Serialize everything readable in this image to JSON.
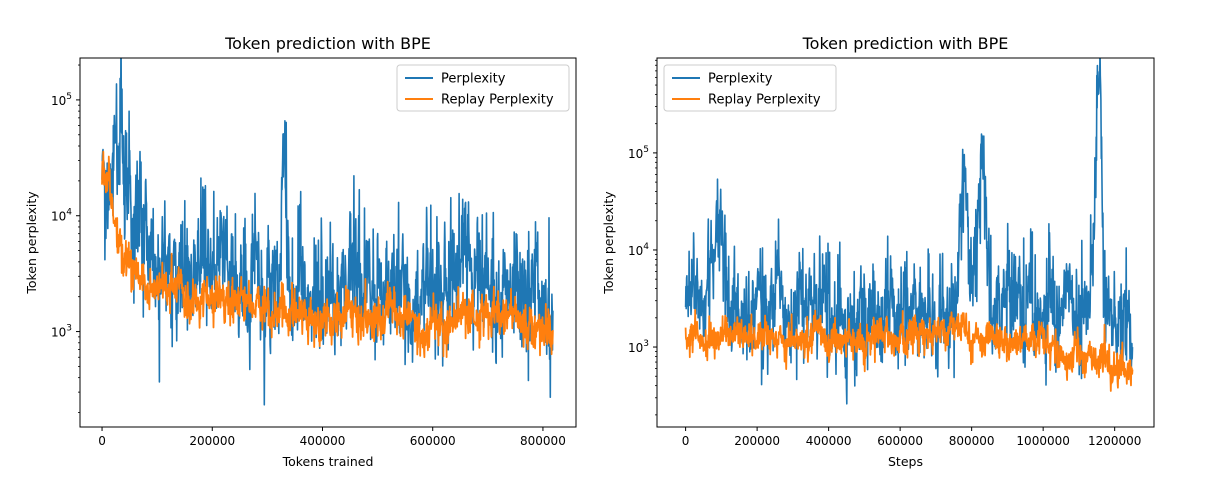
{
  "chart_data": [
    {
      "type": "line",
      "title": "Token prediction with BPE",
      "xlabel": "Tokens trained",
      "ylabel": "Token perplexity",
      "yscale": "log",
      "xlim": [
        -40000,
        860000
      ],
      "ylim": [
        150,
        230000
      ],
      "xticks": [
        0,
        200000,
        400000,
        600000,
        800000
      ],
      "xtick_labels": [
        "0",
        "200000",
        "400000",
        "600000",
        "800000"
      ],
      "yticks": [
        1000,
        10000,
        100000
      ],
      "ytick_base": "10",
      "ytick_exponents": [
        "3",
        "4",
        "5"
      ],
      "legend_position": "upper right",
      "grid": false,
      "series": [
        {
          "name": "Perplexity",
          "color": "#1f77b4",
          "x": [
            0,
            10000,
            20000,
            33000,
            45000,
            60000,
            80000,
            100000,
            120000,
            140000,
            160000,
            180000,
            200000,
            220000,
            240000,
            260000,
            280000,
            300000,
            320000,
            330000,
            340000,
            360000,
            380000,
            400000,
            420000,
            440000,
            450000,
            460000,
            480000,
            500000,
            520000,
            540000,
            560000,
            580000,
            600000,
            620000,
            640000,
            660000,
            680000,
            700000,
            720000,
            740000,
            760000,
            780000,
            800000,
            818000
          ],
          "y": [
            30000,
            28000,
            22000,
            160000,
            15000,
            9000,
            6000,
            4500,
            4000,
            3500,
            3200,
            3000,
            2800,
            3200,
            2600,
            2500,
            2400,
            2300,
            2600,
            53000,
            2500,
            2400,
            2300,
            2200,
            2300,
            2100,
            11000,
            2200,
            2300,
            2400,
            2600,
            2300,
            2200,
            2000,
            1800,
            2400,
            2500,
            2600,
            2700,
            2400,
            2300,
            2200,
            2600,
            2500,
            2300,
            2100
          ]
        },
        {
          "name": "Replay Perplexity",
          "color": "#ff7f0e",
          "x": [
            0,
            10000,
            20000,
            30000,
            45000,
            60000,
            80000,
            100000,
            120000,
            140000,
            160000,
            180000,
            200000,
            220000,
            240000,
            260000,
            280000,
            300000,
            320000,
            340000,
            360000,
            380000,
            400000,
            420000,
            440000,
            460000,
            480000,
            500000,
            520000,
            540000,
            560000,
            580000,
            600000,
            620000,
            640000,
            660000,
            680000,
            700000,
            720000,
            740000,
            760000,
            780000,
            800000,
            818000
          ],
          "y": [
            28000,
            20000,
            12000,
            6000,
            4000,
            3000,
            2600,
            2400,
            2500,
            2300,
            2100,
            2000,
            1800,
            1900,
            1700,
            1600,
            1500,
            1500,
            1600,
            1400,
            1500,
            1400,
            1300,
            1500,
            1400,
            1300,
            1350,
            1300,
            1200,
            1250,
            1300,
            1100,
            1050,
            1200,
            1300,
            1400,
            1300,
            1350,
            1400,
            1300,
            1250,
            1200,
            1150,
            1000
          ]
        }
      ]
    },
    {
      "type": "line",
      "title": "Token prediction with BPE",
      "xlabel": "Steps",
      "ylabel": "Token perplexity",
      "yscale": "log",
      "xlim": [
        -80000,
        1310000
      ],
      "ylim": [
        150,
        950000
      ],
      "xticks": [
        0,
        200000,
        400000,
        600000,
        800000,
        1000000,
        1200000
      ],
      "xtick_labels": [
        "0",
        "200000",
        "400000",
        "600000",
        "800000",
        "1000000",
        "1200000"
      ],
      "yticks": [
        1000,
        10000,
        100000
      ],
      "ytick_base": "10",
      "ytick_exponents": [
        "3",
        "4",
        "5"
      ],
      "legend_position": "upper left",
      "grid": false,
      "series": [
        {
          "name": "Perplexity",
          "color": "#1f77b4",
          "x": [
            0,
            30000,
            60000,
            90000,
            120000,
            150000,
            200000,
            250000,
            300000,
            350000,
            400000,
            450000,
            500000,
            550000,
            600000,
            650000,
            700000,
            750000,
            780000,
            800000,
            830000,
            850000,
            900000,
            950000,
            1000000,
            1050000,
            1100000,
            1130000,
            1160000,
            1170000,
            1200000,
            1250000
          ],
          "y": [
            2600,
            2400,
            2700,
            25000,
            2300,
            2500,
            2400,
            2600,
            2200,
            2500,
            2400,
            2300,
            2300,
            2600,
            2500,
            2500,
            2300,
            2400,
            54000,
            2300,
            110000,
            2500,
            2400,
            2300,
            2200,
            2100,
            1900,
            1800,
            650000,
            1700,
            1600,
            1500
          ]
        },
        {
          "name": "Replay Perplexity",
          "color": "#ff7f0e",
          "x": [
            0,
            30000,
            60000,
            100000,
            150000,
            200000,
            250000,
            300000,
            350000,
            400000,
            450000,
            500000,
            550000,
            600000,
            650000,
            700000,
            750000,
            800000,
            850000,
            900000,
            950000,
            1000000,
            1050000,
            1100000,
            1150000,
            1200000,
            1250000
          ],
          "y": [
            1300,
            1500,
            1100,
            1250,
            1400,
            1200,
            1300,
            1100,
            1350,
            1200,
            1300,
            1100,
            1400,
            1300,
            1250,
            1200,
            1400,
            1300,
            1250,
            1150,
            1300,
            1100,
            900,
            850,
            800,
            700,
            650
          ]
        }
      ]
    }
  ]
}
